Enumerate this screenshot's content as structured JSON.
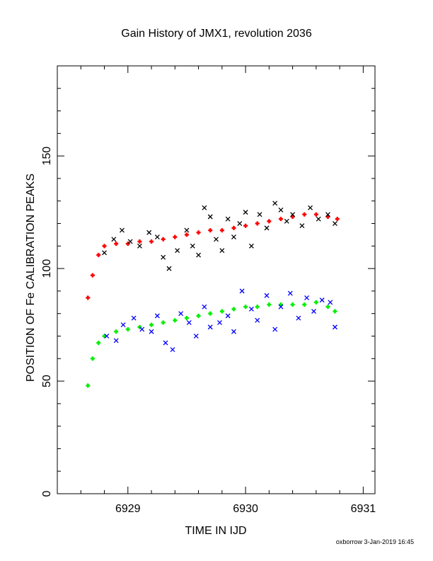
{
  "chart_data": {
    "type": "scatter",
    "title": "Gain History of JMX1, revolution 2036",
    "xlabel": "TIME IN IJD",
    "ylabel": "POSITION OF Fe CALIBRATION PEAKS",
    "xlim": [
      6928.4,
      6931.1
    ],
    "ylim": [
      0,
      190
    ],
    "x_ticks": [
      6929,
      6930,
      6931
    ],
    "y_ticks": [
      0,
      50,
      100,
      150
    ],
    "x_tick_labels": [
      "6929",
      "6930",
      "6931"
    ],
    "y_tick_labels": [
      "0",
      "50",
      "100",
      "150"
    ],
    "grid": false,
    "series": [
      {
        "color": "#ff0000",
        "marker": "plus",
        "x": [
          6928.66,
          6928.7,
          6928.75,
          6928.8,
          6928.9,
          6929.0,
          6929.1,
          6929.2,
          6929.3,
          6929.4,
          6929.5,
          6929.6,
          6929.7,
          6929.8,
          6929.9,
          6930.0,
          6930.1,
          6930.2,
          6930.3,
          6930.4,
          6930.5,
          6930.6,
          6930.7,
          6930.78
        ],
        "values": [
          87,
          97,
          106,
          110,
          111,
          111,
          112,
          112,
          113,
          114,
          115,
          116,
          117,
          117,
          118,
          119,
          120,
          121,
          122,
          123,
          124,
          124,
          123,
          122
        ]
      },
      {
        "color": "#000000",
        "marker": "x",
        "x": [
          6928.8,
          6928.88,
          6928.95,
          6929.02,
          6929.1,
          6929.18,
          6929.25,
          6929.3,
          6929.35,
          6929.42,
          6929.5,
          6929.55,
          6929.6,
          6929.65,
          6929.7,
          6929.75,
          6929.8,
          6929.85,
          6929.9,
          6929.95,
          6930.0,
          6930.05,
          6930.12,
          6930.18,
          6930.25,
          6930.3,
          6930.35,
          6930.4,
          6930.48,
          6930.55,
          6930.62,
          6930.7,
          6930.76
        ],
        "values": [
          107,
          113,
          117,
          112,
          110,
          116,
          114,
          105,
          100,
          108,
          117,
          110,
          106,
          127,
          123,
          113,
          108,
          122,
          114,
          120,
          125,
          110,
          124,
          118,
          129,
          126,
          121,
          124,
          119,
          127,
          122,
          124,
          120
        ]
      },
      {
        "color": "#00ee00",
        "marker": "plus",
        "x": [
          6928.66,
          6928.7,
          6928.75,
          6928.8,
          6928.9,
          6929.0,
          6929.1,
          6929.2,
          6929.3,
          6929.4,
          6929.5,
          6929.6,
          6929.7,
          6929.8,
          6929.9,
          6930.0,
          6930.1,
          6930.2,
          6930.3,
          6930.4,
          6930.5,
          6930.6,
          6930.7,
          6930.76
        ],
        "values": [
          48,
          60,
          67,
          70,
          72,
          73,
          74,
          75,
          76,
          77,
          78,
          79,
          80,
          81,
          82,
          83,
          83,
          84,
          84,
          84,
          84,
          85,
          83,
          81
        ]
      },
      {
        "color": "#0000ff",
        "marker": "x",
        "x": [
          6928.82,
          6928.9,
          6928.96,
          6929.05,
          6929.12,
          6929.2,
          6929.25,
          6929.32,
          6929.38,
          6929.45,
          6929.52,
          6929.58,
          6929.65,
          6929.7,
          6929.78,
          6929.85,
          6929.9,
          6929.97,
          6930.05,
          6930.1,
          6930.18,
          6930.25,
          6930.3,
          6930.38,
          6930.45,
          6930.52,
          6930.58,
          6930.65,
          6930.72,
          6930.76
        ],
        "values": [
          70,
          68,
          75,
          78,
          73,
          72,
          79,
          67,
          64,
          80,
          76,
          70,
          83,
          74,
          76,
          79,
          72,
          90,
          82,
          77,
          88,
          73,
          83,
          89,
          78,
          87,
          81,
          86,
          85,
          74
        ]
      }
    ]
  },
  "footer": {
    "stamp": "oxborrow  3-Jan-2019 16:45"
  }
}
